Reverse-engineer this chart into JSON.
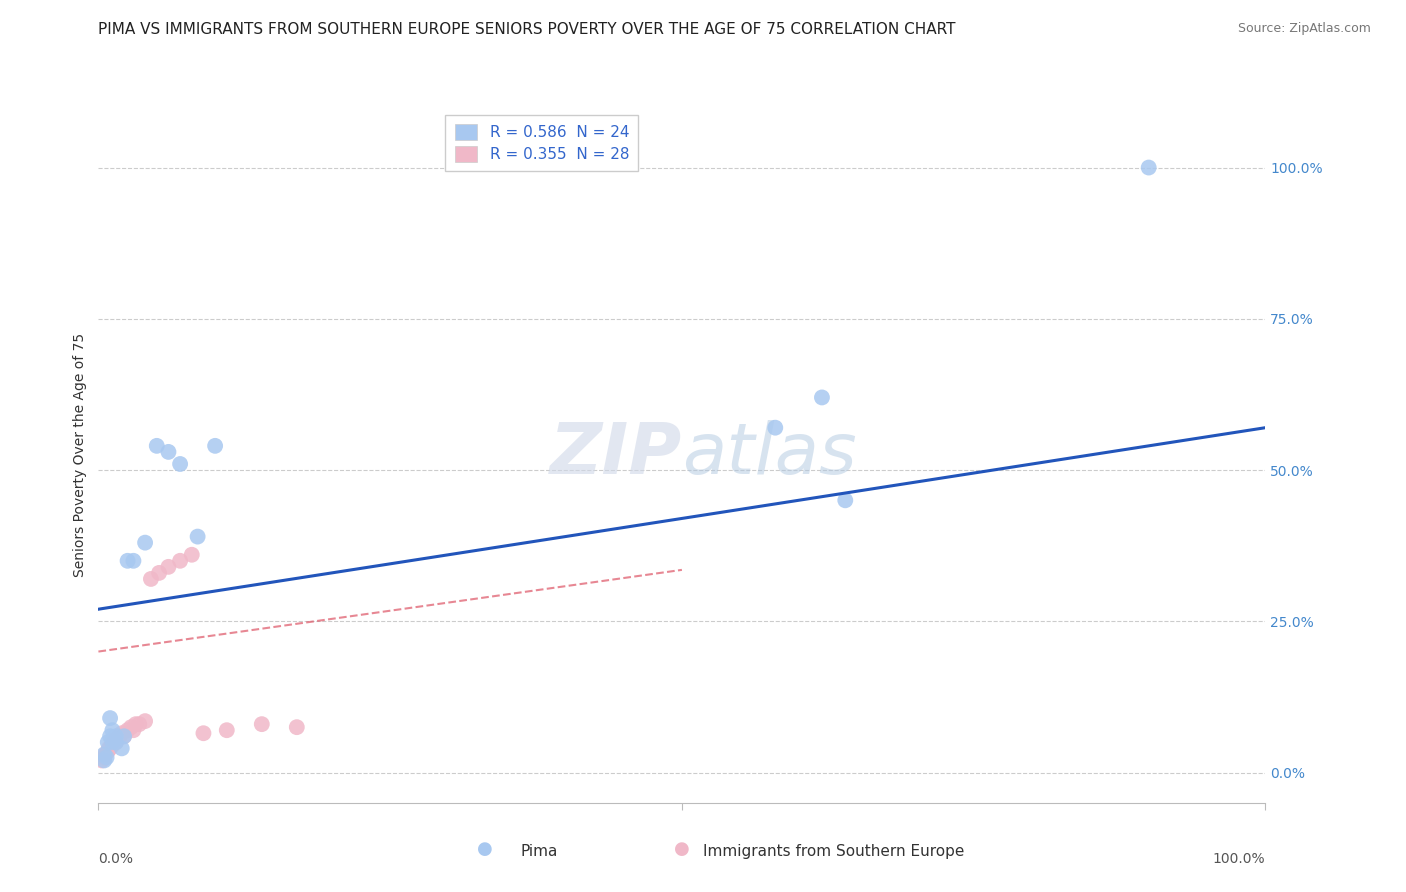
{
  "title": "PIMA VS IMMIGRANTS FROM SOUTHERN EUROPE SENIORS POVERTY OVER THE AGE OF 75 CORRELATION CHART",
  "source": "Source: ZipAtlas.com",
  "ylabel": "Seniors Poverty Over the Age of 75",
  "ytick_values": [
    0.0,
    0.25,
    0.5,
    0.75,
    1.0
  ],
  "xlim": [
    0,
    1.0
  ],
  "ylim": [
    -0.05,
    1.1
  ],
  "legend_entries": [
    {
      "label": "R = 0.586  N = 24",
      "color": "#a8c8f0"
    },
    {
      "label": "R = 0.355  N = 28",
      "color": "#f0a8b8"
    }
  ],
  "watermark_zip": "ZIP",
  "watermark_atlas": "atlas",
  "series1_name": "Pima",
  "series2_name": "Immigrants from Southern Europe",
  "series1_color": "#a8c8f0",
  "series2_color": "#f0b8c8",
  "series1_line_color": "#2255bb",
  "series2_line_color": "#dd5566",
  "series1_x": [
    0.005,
    0.005,
    0.007,
    0.008,
    0.01,
    0.01,
    0.012,
    0.012,
    0.015,
    0.015,
    0.02,
    0.022,
    0.025,
    0.03,
    0.04,
    0.05,
    0.06,
    0.07,
    0.085,
    0.1,
    0.58,
    0.62,
    0.64,
    0.9
  ],
  "series1_y": [
    0.02,
    0.03,
    0.025,
    0.05,
    0.06,
    0.09,
    0.05,
    0.07,
    0.05,
    0.06,
    0.04,
    0.06,
    0.35,
    0.35,
    0.38,
    0.54,
    0.53,
    0.51,
    0.39,
    0.54,
    0.57,
    0.62,
    0.45,
    1.0
  ],
  "series2_x": [
    0.003,
    0.005,
    0.006,
    0.008,
    0.009,
    0.01,
    0.012,
    0.013,
    0.015,
    0.015,
    0.018,
    0.02,
    0.022,
    0.025,
    0.028,
    0.03,
    0.032,
    0.035,
    0.04,
    0.045,
    0.052,
    0.06,
    0.07,
    0.08,
    0.09,
    0.11,
    0.14,
    0.17
  ],
  "series2_y": [
    0.02,
    0.025,
    0.03,
    0.035,
    0.04,
    0.04,
    0.045,
    0.05,
    0.05,
    0.055,
    0.06,
    0.065,
    0.06,
    0.07,
    0.075,
    0.07,
    0.08,
    0.08,
    0.085,
    0.32,
    0.33,
    0.34,
    0.35,
    0.36,
    0.065,
    0.07,
    0.08,
    0.075
  ],
  "line1_x0": 0.0,
  "line1_y0": 0.27,
  "line1_x1": 1.0,
  "line1_y1": 0.57,
  "line2_x0": 0.0,
  "line2_y0": 0.2,
  "line2_x1": 0.5,
  "line2_y1": 0.335,
  "background_color": "#ffffff",
  "grid_color": "#cccccc",
  "title_fontsize": 11,
  "source_fontsize": 9,
  "axis_label_fontsize": 10,
  "tick_fontsize": 10,
  "legend_fontsize": 11
}
